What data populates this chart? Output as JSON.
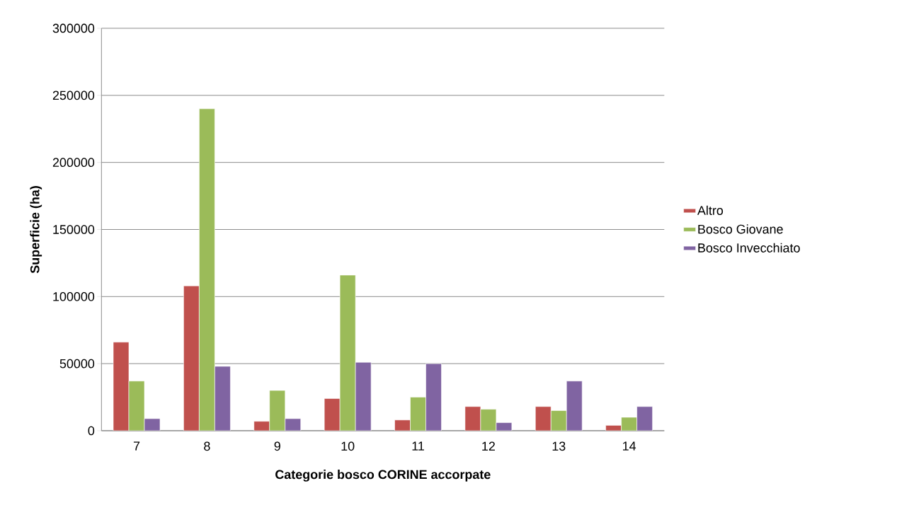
{
  "chart_data": {
    "type": "bar",
    "xlabel": "Categorie bosco CORINE accorpate",
    "ylabel": "Superficie (ha)",
    "categories": [
      "7",
      "8",
      "9",
      "10",
      "11",
      "12",
      "13",
      "14"
    ],
    "series": [
      {
        "name": "Altro",
        "color": "#c0504d",
        "values": [
          66000,
          108000,
          7000,
          24000,
          8000,
          18000,
          18000,
          4000
        ]
      },
      {
        "name": "Bosco Giovane",
        "color": "#9bbb59",
        "values": [
          37000,
          240000,
          30000,
          116000,
          25000,
          16000,
          15000,
          10000
        ]
      },
      {
        "name": "Bosco Invecchiato",
        "color": "#8064a2",
        "values": [
          9000,
          48000,
          9000,
          51000,
          50000,
          6000,
          37000,
          18000
        ]
      }
    ],
    "ylim": [
      0,
      300000
    ],
    "yticks": [
      0,
      50000,
      100000,
      150000,
      200000,
      250000,
      300000
    ],
    "grid": "y",
    "legend": "right"
  }
}
